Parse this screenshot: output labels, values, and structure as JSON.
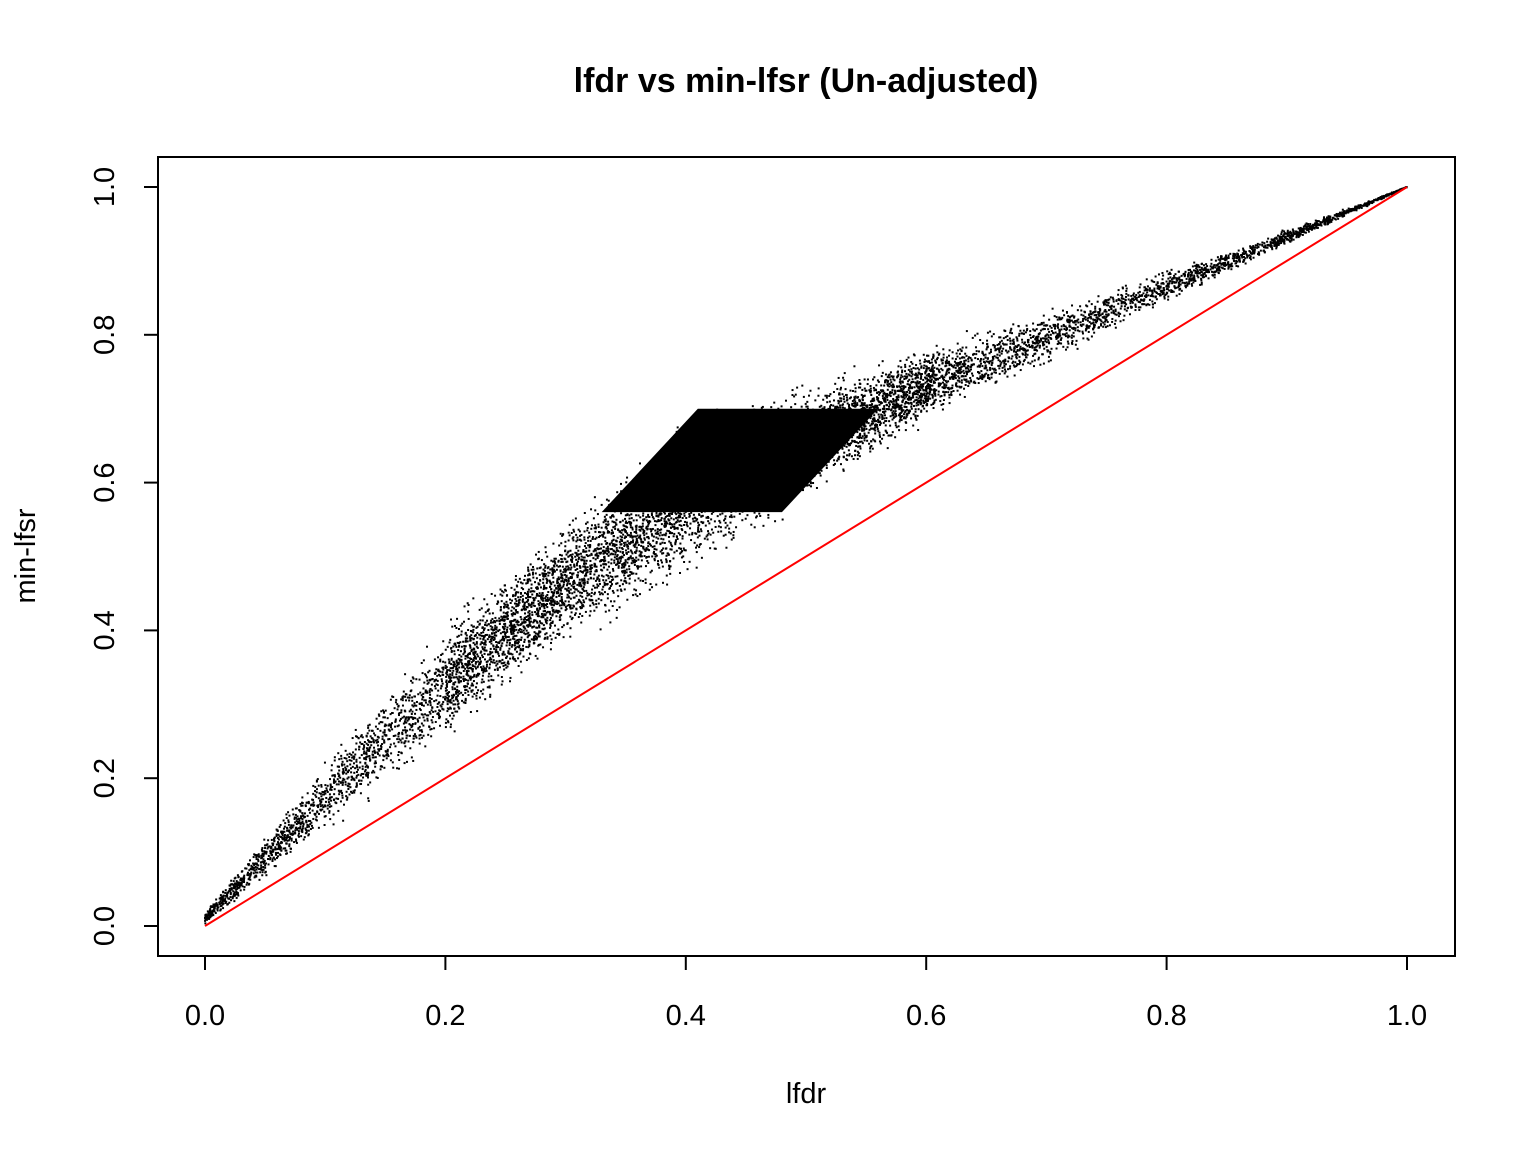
{
  "chart_data": {
    "type": "scatter",
    "title": "lfdr vs min-lfsr (Un-adjusted)",
    "xlabel": "lfdr",
    "ylabel": "min-lfsr",
    "xlim": [
      0.0,
      1.0
    ],
    "ylim": [
      0.0,
      1.0
    ],
    "xticks": [
      "0.0",
      "0.2",
      "0.4",
      "0.6",
      "0.8",
      "1.0"
    ],
    "yticks": [
      "0.0",
      "0.2",
      "0.4",
      "0.6",
      "0.8",
      "1.0"
    ],
    "grid": false,
    "point_color": "#000000",
    "reference_line": {
      "x": [
        0.0,
        1.0
      ],
      "y": [
        0.0,
        1.0
      ],
      "color": "#ff0000"
    },
    "distribution": {
      "points_approx": 60000,
      "upper_envelope": [
        [
          0.0,
          0.02
        ],
        [
          0.1,
          0.23
        ],
        [
          0.2,
          0.42
        ],
        [
          0.3,
          0.56
        ],
        [
          0.41,
          0.7
        ],
        [
          0.6,
          0.79
        ],
        [
          0.8,
          0.89
        ],
        [
          1.0,
          1.0
        ]
      ],
      "lower_envelope": [
        [
          0.0,
          0.0
        ],
        [
          0.1,
          0.12
        ],
        [
          0.2,
          0.24
        ],
        [
          0.3,
          0.37
        ],
        [
          0.41,
          0.47
        ],
        [
          0.6,
          0.67
        ],
        [
          0.8,
          0.84
        ],
        [
          1.0,
          1.0
        ]
      ],
      "dense_cluster": [
        [
          0.33,
          0.56
        ],
        [
          0.41,
          0.7
        ],
        [
          0.56,
          0.7
        ],
        [
          0.48,
          0.56
        ]
      ]
    }
  }
}
